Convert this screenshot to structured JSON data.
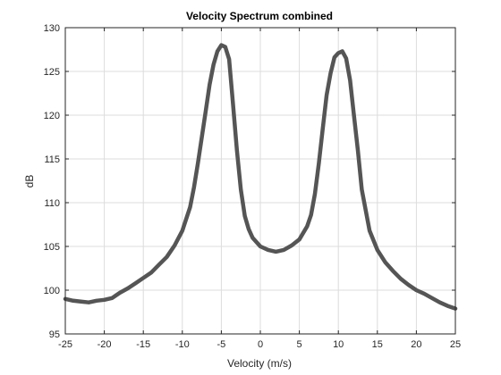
{
  "chart_data": {
    "type": "line",
    "title": "Velocity Spectrum combined",
    "xlabel": "Velocity (m/s)",
    "ylabel": "dB",
    "xlim": [
      -25,
      25
    ],
    "ylim": [
      95,
      130
    ],
    "xticks": [
      -25,
      -20,
      -15,
      -10,
      -5,
      0,
      5,
      10,
      15,
      20,
      25
    ],
    "yticks": [
      95,
      100,
      105,
      110,
      115,
      120,
      125,
      130
    ],
    "grid": true,
    "colors": {
      "line": "#555555",
      "grid": "#dcdcdc",
      "axis": "#262626"
    },
    "series": [
      {
        "x": [
          -25,
          -24,
          -23,
          -22,
          -21,
          -20,
          -19,
          -18,
          -17,
          -16,
          -15,
          -14,
          -13,
          -12,
          -11,
          -10,
          -9,
          -8.5,
          -8,
          -7.5,
          -7,
          -6.5,
          -6,
          -5.5,
          -5,
          -4.5,
          -4,
          -3.5,
          -3,
          -2.5,
          -2,
          -1.5,
          -1,
          0,
          1,
          2,
          3,
          4,
          5,
          6,
          6.5,
          7,
          7.5,
          8,
          8.5,
          9,
          9.5,
          10,
          10.5,
          11,
          11.5,
          12,
          12.5,
          13,
          14,
          15,
          16,
          17,
          18,
          19,
          20,
          21,
          22,
          23,
          24,
          25
        ],
        "y": [
          99.0,
          98.8,
          98.7,
          98.6,
          98.8,
          98.9,
          99.1,
          99.7,
          100.2,
          100.8,
          101.4,
          102.0,
          102.9,
          103.8,
          105.1,
          106.8,
          109.5,
          111.8,
          114.5,
          117.5,
          120.5,
          123.5,
          125.8,
          127.3,
          128.0,
          127.8,
          126.4,
          121.2,
          116.0,
          111.5,
          108.5,
          107.0,
          106.0,
          105.0,
          104.6,
          104.4,
          104.6,
          105.1,
          105.8,
          107.3,
          108.6,
          111.0,
          114.5,
          118.5,
          122.3,
          124.8,
          126.6,
          127.1,
          127.3,
          126.5,
          124.0,
          120.0,
          116.0,
          111.5,
          106.8,
          104.6,
          103.2,
          102.2,
          101.3,
          100.6,
          100.0,
          99.6,
          99.1,
          98.6,
          98.2,
          97.9
        ]
      }
    ]
  }
}
